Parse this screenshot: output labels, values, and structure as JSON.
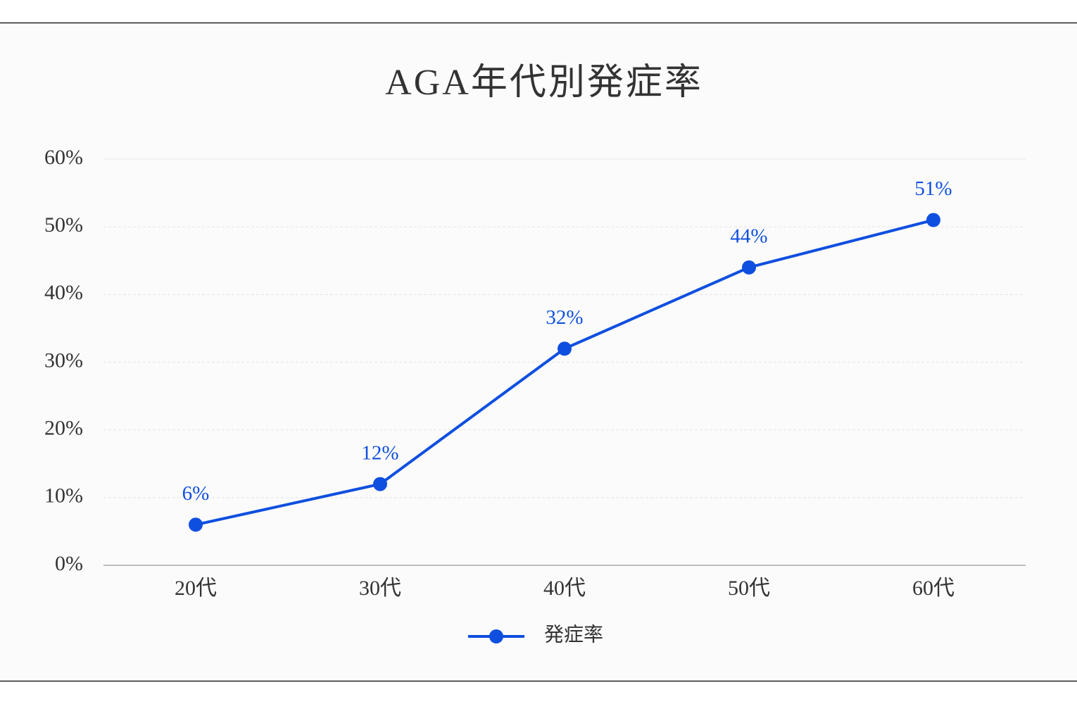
{
  "chart_data": {
    "type": "line",
    "title": "AGA年代別発症率",
    "categories": [
      "20代",
      "30代",
      "40代",
      "50代",
      "60代"
    ],
    "series": [
      {
        "name": "発症率",
        "color": "#0f4fe0",
        "values": [
          6,
          12,
          32,
          44,
          51
        ],
        "value_labels": [
          "6%",
          "12%",
          "32%",
          "44%",
          "51%"
        ]
      }
    ],
    "ylim": [
      0,
      60
    ],
    "yticks": [
      {
        "value": 0,
        "label": "0%"
      },
      {
        "value": 10,
        "label": "10%"
      },
      {
        "value": 20,
        "label": "20%"
      },
      {
        "value": 30,
        "label": "30%"
      },
      {
        "value": 40,
        "label": "40%"
      },
      {
        "value": 50,
        "label": "50%"
      },
      {
        "value": 60,
        "label": "60%"
      }
    ],
    "grid": true,
    "legend": "bottom"
  }
}
